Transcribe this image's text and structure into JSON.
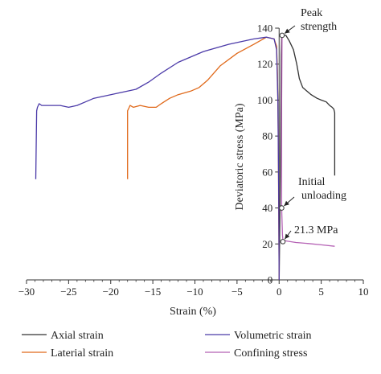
{
  "chart_data": {
    "type": "line",
    "xlabel": "Strain (%)",
    "ylabel": "Deviatoric stress (MPa)",
    "xlim": [
      -30,
      10
    ],
    "ylim": [
      0,
      140
    ],
    "xticks": [
      -30,
      -25,
      -20,
      -15,
      -10,
      -5,
      0,
      5,
      10
    ],
    "yticks": [
      0,
      20,
      40,
      60,
      80,
      100,
      120,
      140
    ],
    "grid": false,
    "legend": "bottom",
    "series": [
      {
        "name": "Axial strain",
        "color": "#333333",
        "points": [
          [
            0,
            0
          ],
          [
            0.1,
            40
          ],
          [
            0.2,
            90
          ],
          [
            0.25,
            125
          ],
          [
            0.3,
            134
          ],
          [
            0.35,
            136
          ],
          [
            0.8,
            136
          ],
          [
            1.2,
            133
          ],
          [
            1.7,
            128
          ],
          [
            2.1,
            120
          ],
          [
            2.4,
            112
          ],
          [
            2.8,
            107
          ],
          [
            3.3,
            105
          ],
          [
            3.8,
            103
          ],
          [
            4.5,
            101
          ],
          [
            5.0,
            100
          ],
          [
            5.6,
            99
          ],
          [
            6.0,
            97
          ],
          [
            6.3,
            96
          ],
          [
            6.5,
            95
          ],
          [
            6.6,
            93
          ],
          [
            6.6,
            58
          ]
        ]
      },
      {
        "name": "Laterial strain",
        "color": "#e0691a",
        "points": [
          [
            0,
            0
          ],
          [
            -0.05,
            40
          ],
          [
            -0.1,
            80
          ],
          [
            -0.2,
            115
          ],
          [
            -0.3,
            130
          ],
          [
            -0.6,
            134
          ],
          [
            -1.5,
            135
          ],
          [
            -3,
            131
          ],
          [
            -5,
            126
          ],
          [
            -7,
            119
          ],
          [
            -8.5,
            111
          ],
          [
            -9.5,
            107
          ],
          [
            -10.5,
            105
          ],
          [
            -12,
            103
          ],
          [
            -13,
            101
          ],
          [
            -14,
            98
          ],
          [
            -14.6,
            96
          ],
          [
            -15.5,
            96
          ],
          [
            -16.5,
            97
          ],
          [
            -17.3,
            96
          ],
          [
            -17.7,
            97
          ],
          [
            -17.8,
            96
          ],
          [
            -18.0,
            94
          ],
          [
            -18.0,
            56
          ]
        ]
      },
      {
        "name": "Volumetric strain",
        "color": "#4b3aa8",
        "points": [
          [
            0,
            0
          ],
          [
            -0.05,
            50
          ],
          [
            -0.15,
            100
          ],
          [
            -0.3,
            128
          ],
          [
            -0.6,
            134
          ],
          [
            -1.5,
            135
          ],
          [
            -3,
            134
          ],
          [
            -6,
            131
          ],
          [
            -9,
            127
          ],
          [
            -12,
            121
          ],
          [
            -14,
            115
          ],
          [
            -15.5,
            110
          ],
          [
            -17,
            106
          ],
          [
            -19,
            104
          ],
          [
            -21,
            102
          ],
          [
            -22,
            101
          ],
          [
            -23,
            99
          ],
          [
            -24,
            97
          ],
          [
            -25,
            96
          ],
          [
            -26,
            97
          ],
          [
            -27,
            97
          ],
          [
            -28.2,
            97
          ],
          [
            -28.5,
            98
          ],
          [
            -28.7,
            96
          ],
          [
            -28.8,
            94
          ],
          [
            -28.9,
            56
          ]
        ]
      },
      {
        "name": "Confining stress",
        "color": "#b562b5",
        "points": [
          [
            0.35,
            136
          ],
          [
            0.3,
            100
          ],
          [
            0.3,
            60
          ],
          [
            0.3,
            40
          ],
          [
            0.4,
            25
          ],
          [
            0.45,
            22
          ],
          [
            1.0,
            21.5
          ],
          [
            2.0,
            20.8
          ],
          [
            3.5,
            20.2
          ],
          [
            5,
            19.5
          ],
          [
            6.6,
            18.7
          ]
        ]
      }
    ],
    "annotations": [
      {
        "lines": [
          "Peak",
          "strength"
        ],
        "point": [
          0.35,
          136
        ]
      },
      {
        "lines": [
          "Initial",
          "unloading"
        ],
        "point": [
          0.3,
          40
        ]
      },
      {
        "lines": [
          "21.3 MPa"
        ],
        "point": [
          0.45,
          21.3
        ]
      }
    ]
  }
}
